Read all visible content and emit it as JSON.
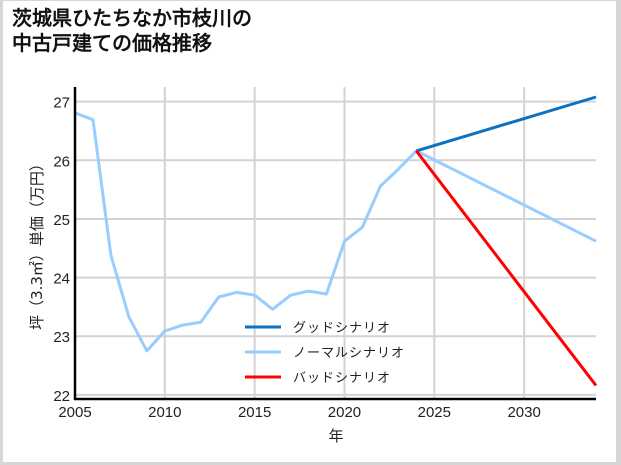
{
  "title": {
    "line1": "茨城県ひたちなか市枝川の",
    "line2": "中古戸建ての価格推移"
  },
  "colors": {
    "good": "#0a72c4",
    "normal": "#99ccff",
    "bad": "#ff0000",
    "grid": "#d3d3d3",
    "axis": "#000000"
  },
  "chart_data": {
    "type": "line",
    "title": "茨城県ひたちなか市枝川の中古戸建ての価格推移",
    "xlabel": "年",
    "ylabel": "坪（3.3㎡）単価（万円）",
    "xlim": [
      2005,
      2034
    ],
    "ylim": [
      21.93,
      27.25
    ],
    "xticks": [
      2005,
      2010,
      2015,
      2020,
      2025,
      2030
    ],
    "yticks": [
      22,
      23,
      24,
      25,
      26,
      27
    ],
    "grid": true,
    "legend_position": "lower center",
    "series": [
      {
        "name": "ノーマルシナリオ",
        "color": "#99ccff",
        "x": [
          2005,
          2006,
          2007,
          2008,
          2009,
          2010,
          2011,
          2012,
          2013,
          2014,
          2015,
          2016,
          2017,
          2018,
          2019,
          2020,
          2021,
          2022,
          2023,
          2024,
          2034
        ],
        "y": [
          26.81,
          26.69,
          24.38,
          23.33,
          22.75,
          23.09,
          23.19,
          23.24,
          23.67,
          23.75,
          23.7,
          23.46,
          23.7,
          23.77,
          23.72,
          24.62,
          24.86,
          25.56,
          25.85,
          26.16,
          24.62
        ]
      },
      {
        "name": "グッドシナリオ",
        "color": "#0a72c4",
        "x": [
          2024,
          2034
        ],
        "y": [
          26.16,
          27.08
        ]
      },
      {
        "name": "バッドシナリオ",
        "color": "#ff0000",
        "x": [
          2024,
          2034
        ],
        "y": [
          26.16,
          22.16
        ]
      }
    ]
  },
  "legend": [
    {
      "label": "グッドシナリオ",
      "color": "#0a72c4"
    },
    {
      "label": "ノーマルシナリオ",
      "color": "#99ccff"
    },
    {
      "label": "バッドシナリオ",
      "color": "#ff0000"
    }
  ],
  "axes": {
    "xlabel": "年",
    "ylabel": "坪（3.3㎡）単価（万円）"
  }
}
